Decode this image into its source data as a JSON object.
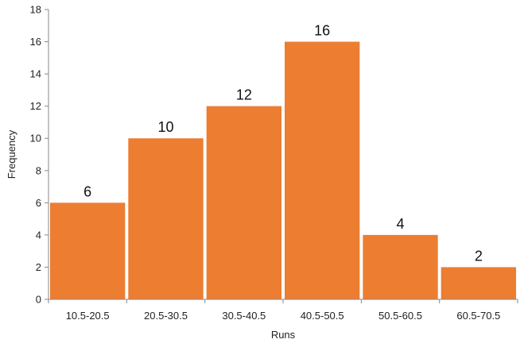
{
  "chart_data": {
    "type": "bar",
    "categories": [
      "10.5-20.5",
      "20.5-30.5",
      "30.5-40.5",
      "40.5-50.5",
      "50.5-60.5",
      "60.5-70.5"
    ],
    "values": [
      6,
      10,
      12,
      16,
      4,
      2
    ],
    "data_labels": [
      "6",
      "10",
      "12",
      "16",
      "4",
      "2"
    ],
    "title": "",
    "xlabel": "Runs",
    "ylabel": "Frequency",
    "ylim": [
      0,
      18
    ],
    "yticks": [
      0,
      2,
      4,
      6,
      8,
      10,
      12,
      14,
      16,
      18
    ],
    "grid": false,
    "legend": "none",
    "bar_color": "#ED7D31",
    "axis_color": "#888888"
  }
}
